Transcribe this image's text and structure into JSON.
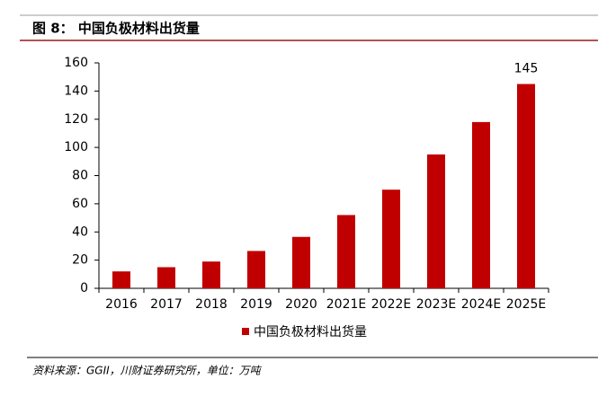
{
  "chart_data": {
    "type": "bar",
    "title": "图 8： 中国负极材料出货量",
    "categories": [
      "2016",
      "2017",
      "2018",
      "2019",
      "2020",
      "2021E",
      "2022E",
      "2023E",
      "2024E",
      "2025E"
    ],
    "series": [
      {
        "name": "中国负极材料出货量",
        "color": "#c00000",
        "values": [
          12,
          15,
          19,
          26.5,
          36.5,
          52,
          70,
          95,
          118,
          145
        ],
        "value_labels": [
          null,
          null,
          null,
          null,
          null,
          null,
          null,
          null,
          null,
          "145"
        ]
      }
    ],
    "ylim": [
      0,
      160
    ],
    "yticks": [
      0,
      20,
      40,
      60,
      80,
      100,
      120,
      140,
      160
    ],
    "source": "资料来源：GGII，川财证券研究所，单位：万吨"
  }
}
